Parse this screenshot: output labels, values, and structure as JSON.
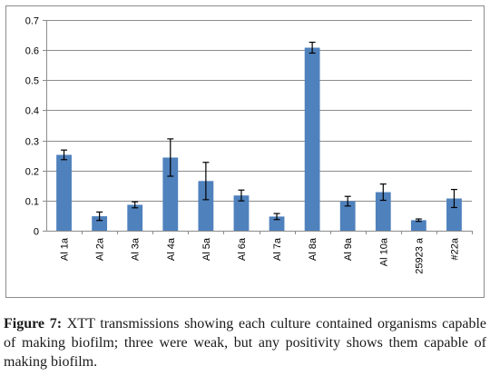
{
  "chart_data": {
    "type": "bar",
    "categories": [
      "Al 1a",
      "Al 2a",
      "Al 3a",
      "Al 4a",
      "Al 5a",
      "Al 6a",
      "Al 7a",
      "Al 8a",
      "Al 9a",
      "Al 10a",
      "25923 a",
      "#22a"
    ],
    "values": [
      0.252,
      0.048,
      0.086,
      0.243,
      0.165,
      0.117,
      0.047,
      0.608,
      0.098,
      0.128,
      0.035,
      0.107
    ],
    "errors": [
      0.016,
      0.014,
      0.01,
      0.062,
      0.062,
      0.018,
      0.01,
      0.018,
      0.016,
      0.027,
      0.004,
      0.03
    ],
    "ylim": [
      0,
      0.7
    ],
    "yticks": [
      "0",
      "0.1",
      "0.2",
      "0.3",
      "0.4",
      "0.5",
      "0.6",
      "0.7"
    ],
    "grid": true,
    "bar_color": "#4f81bd",
    "grid_color": "#8c8c8c",
    "title": "",
    "xlabel": "",
    "ylabel": ""
  },
  "caption": {
    "label": "Figure 7:",
    "text": " XTT transmissions showing each culture contained organisms capable of making biofilm; three were weak, but any positivity shows them capable of making biofilm."
  }
}
